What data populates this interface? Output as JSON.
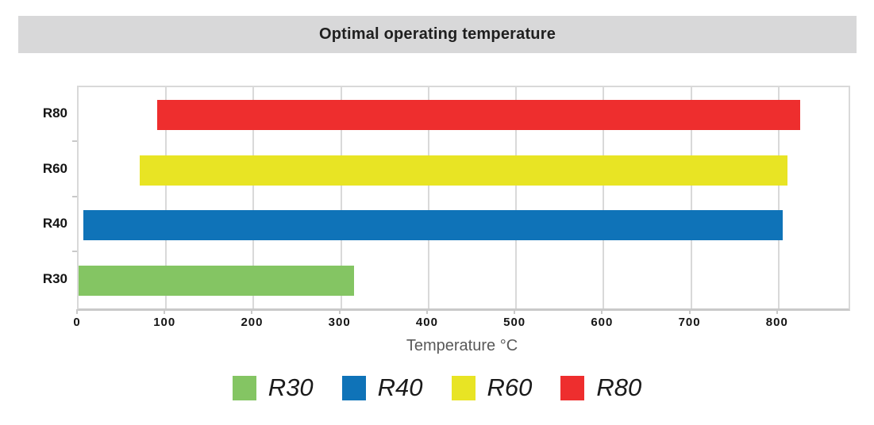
{
  "chart_data": {
    "type": "bar",
    "orientation": "horizontal",
    "title": "Optimal operating temperature",
    "xlabel": "Temperature °C",
    "xlim": [
      0,
      880
    ],
    "xticks": [
      0,
      100,
      200,
      300,
      400,
      500,
      600,
      700,
      800
    ],
    "grid": true,
    "legend_position": "bottom",
    "categories": [
      "R80",
      "R60",
      "R40",
      "R30"
    ],
    "bars": [
      {
        "label": "R80",
        "color": "#ee2e2e",
        "start": 90,
        "end": 825
      },
      {
        "label": "R60",
        "color": "#e8e424",
        "start": 70,
        "end": 810
      },
      {
        "label": "R40",
        "color": "#0f73b8",
        "start": 5,
        "end": 805
      },
      {
        "label": "R30",
        "color": "#84c563",
        "start": 0,
        "end": 315
      }
    ],
    "legend": [
      {
        "label": "R30",
        "color": "#84c563"
      },
      {
        "label": "R40",
        "color": "#0f73b8"
      },
      {
        "label": "R60",
        "color": "#e8e424"
      },
      {
        "label": "R80",
        "color": "#ee2e2e"
      }
    ]
  },
  "colors": {
    "title_band": "#d8d8d9",
    "title_text": "#1f1f1f",
    "gridline": "#d9d9d9",
    "axis_line": "#c9c9c9",
    "tick_label_text": "#141414",
    "axis_title_text": "#595959",
    "legend_label_text": "#1a1a1a"
  }
}
